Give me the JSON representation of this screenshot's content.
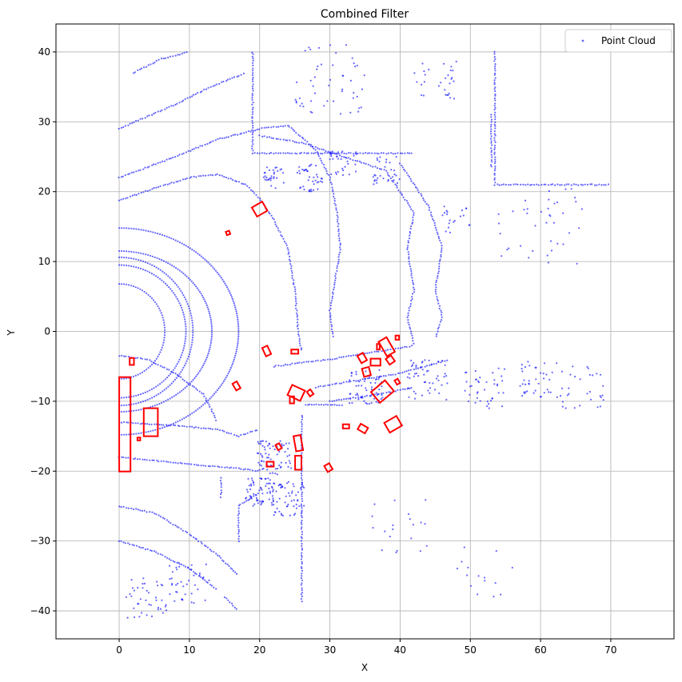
{
  "chart_data": {
    "type": "scatter",
    "title": "Combined Filter",
    "xlabel": "X",
    "ylabel": "Y",
    "xlim": [
      -9,
      79
    ],
    "ylim": [
      -44,
      44
    ],
    "xticks": [
      0,
      10,
      20,
      30,
      40,
      50,
      60,
      70
    ],
    "yticks": [
      -40,
      -30,
      -20,
      -10,
      0,
      10,
      20,
      30,
      40
    ],
    "grid": true,
    "legend_position": "top-right",
    "series": [
      {
        "name": "Point Cloud",
        "color": "#0000ff",
        "marker": "dot",
        "rings": [
          {
            "cx": 0,
            "cy": 0,
            "rx": 6.5,
            "ry": 6.8
          },
          {
            "cx": 0,
            "cy": 0,
            "rx": 9.5,
            "ry": 9.5
          },
          {
            "cx": 0,
            "cy": 0,
            "rx": 10.5,
            "ry": 10.6
          },
          {
            "cx": 0,
            "cy": 0,
            "rx": 13.2,
            "ry": 11.5
          },
          {
            "cx": 0,
            "cy": 0,
            "rx": 17,
            "ry": 14.8
          }
        ],
        "polylines": [
          [
            [
              0,
              -3.5
            ],
            [
              4,
              -4
            ],
            [
              8,
              -6
            ],
            [
              12,
              -9
            ],
            [
              14,
              -13
            ]
          ],
          [
            [
              0,
              18.7
            ],
            [
              5,
              20.5
            ],
            [
              10,
              22
            ],
            [
              14,
              22.5
            ],
            [
              18,
              21
            ],
            [
              20,
              19
            ],
            [
              22,
              16
            ],
            [
              24,
              12
            ],
            [
              25,
              6
            ],
            [
              25.5,
              0
            ],
            [
              26,
              -3
            ]
          ],
          [
            [
              0,
              22
            ],
            [
              8,
              25
            ],
            [
              14,
              27.5
            ],
            [
              20,
              29
            ],
            [
              24,
              29.5
            ],
            [
              28,
              26
            ],
            [
              30,
              22
            ],
            [
              31,
              17
            ],
            [
              31.5,
              12
            ],
            [
              30.5,
              6
            ],
            [
              30,
              3
            ],
            [
              30.5,
              -1
            ]
          ],
          [
            [
              0,
              29
            ],
            [
              8,
              32.5
            ],
            [
              13,
              35
            ],
            [
              18,
              37
            ]
          ],
          [
            [
              2,
              37
            ],
            [
              6,
              39
            ],
            [
              10,
              40
            ]
          ],
          [
            [
              19,
              40
            ],
            [
              19,
              25.5
            ],
            [
              42,
              25.5
            ]
          ],
          [
            [
              20,
              28
            ],
            [
              26,
              27
            ],
            [
              32,
              25
            ],
            [
              38,
              23
            ],
            [
              42,
              17
            ],
            [
              41,
              12
            ],
            [
              42,
              6
            ],
            [
              41,
              2
            ],
            [
              42,
              -2
            ]
          ],
          [
            [
              40,
              24
            ],
            [
              44,
              18
            ],
            [
              46,
              12
            ],
            [
              45,
              6
            ],
            [
              46,
              2
            ],
            [
              45,
              -1
            ]
          ],
          [
            [
              53.5,
              40
            ],
            [
              53.5,
              21
            ],
            [
              70,
              21
            ]
          ],
          [
            [
              53,
              31
            ],
            [
              53,
              23.2
            ]
          ],
          [
            [
              0,
              -13
            ],
            [
              8,
              -13.5
            ],
            [
              14,
              -14
            ],
            [
              17,
              -15
            ],
            [
              20,
              -14
            ]
          ],
          [
            [
              0,
              -18
            ],
            [
              10,
              -19
            ],
            [
              16,
              -19.5
            ],
            [
              20,
              -20
            ]
          ],
          [
            [
              26,
              -12
            ],
            [
              26,
              -39
            ]
          ],
          [
            [
              26.5,
              -10.5
            ],
            [
              32,
              -10.5
            ]
          ],
          [
            [
              14.5,
              -21
            ],
            [
              14.5,
              -24
            ]
          ],
          [
            [
              0,
              -25
            ],
            [
              5,
              -26
            ],
            [
              10,
              -29
            ],
            [
              14,
              -32
            ],
            [
              17,
              -35
            ]
          ],
          [
            [
              0,
              -30
            ],
            [
              5,
              -31.5
            ],
            [
              10,
              -34
            ],
            [
              14,
              -37
            ]
          ],
          [
            [
              17,
              -30
            ],
            [
              17,
              -25
            ],
            [
              20,
              -23
            ]
          ],
          [
            [
              15,
              -38
            ],
            [
              17,
              -40
            ]
          ],
          [
            [
              28,
              -8
            ],
            [
              34,
              -7
            ],
            [
              40,
              -6
            ],
            [
              47,
              -4
            ]
          ],
          [
            [
              30,
              -10
            ],
            [
              37,
              -9
            ],
            [
              42,
              -8
            ]
          ],
          [
            [
              22,
              -5
            ],
            [
              30,
              -4
            ],
            [
              36,
              -3
            ],
            [
              42,
              -2
            ]
          ]
        ],
        "clusters": [
          {
            "x": 22,
            "y": 22,
            "spread": 1.5,
            "n": 30
          },
          {
            "x": 27,
            "y": 22,
            "spread": 2.0,
            "n": 40
          },
          {
            "x": 32,
            "y": 24,
            "spread": 2.0,
            "n": 30
          },
          {
            "x": 38,
            "y": 23,
            "spread": 2.0,
            "n": 30
          },
          {
            "x": 22,
            "y": -18,
            "spread": 2.5,
            "n": 70
          },
          {
            "x": 24,
            "y": -24,
            "spread": 2.5,
            "n": 60
          },
          {
            "x": 20,
            "y": -23,
            "spread": 2.0,
            "n": 60
          },
          {
            "x": 35,
            "y": -8,
            "spread": 2.5,
            "n": 60
          },
          {
            "x": 44,
            "y": -7,
            "spread": 3.0,
            "n": 50
          },
          {
            "x": 52,
            "y": -8,
            "spread": 3.0,
            "n": 40
          },
          {
            "x": 60,
            "y": -7,
            "spread": 3.0,
            "n": 40
          },
          {
            "x": 66,
            "y": -8,
            "spread": 3.0,
            "n": 30
          },
          {
            "x": 60,
            "y": 15,
            "spread": 6.0,
            "n": 40
          },
          {
            "x": 48,
            "y": 16,
            "spread": 2.0,
            "n": 20
          },
          {
            "x": 30,
            "y": 36,
            "spread": 5.0,
            "n": 50
          },
          {
            "x": 45,
            "y": 36,
            "spread": 3.0,
            "n": 30
          },
          {
            "x": 40,
            "y": -28,
            "spread": 4.0,
            "n": 20
          },
          {
            "x": 52,
            "y": -34,
            "spread": 4.0,
            "n": 15
          },
          {
            "x": 4,
            "y": -38,
            "spread": 3.0,
            "n": 40
          },
          {
            "x": 10,
            "y": -36,
            "spread": 3.0,
            "n": 40
          }
        ]
      }
    ],
    "boxes": [
      {
        "cx": 0.8,
        "cy": -13.3,
        "w": 1.6,
        "h": 13.5,
        "angle": 0
      },
      {
        "cx": 4.5,
        "cy": -13,
        "w": 2.0,
        "h": 4.0,
        "angle": 0
      },
      {
        "cx": 1.8,
        "cy": -4.3,
        "w": 0.6,
        "h": 1.0,
        "angle": 0
      },
      {
        "cx": 2.8,
        "cy": -15.4,
        "w": 0.4,
        "h": 0.4,
        "angle": 0
      },
      {
        "cx": 20,
        "cy": 17.5,
        "w": 1.7,
        "h": 1.5,
        "angle": 30
      },
      {
        "cx": 15.5,
        "cy": 14.1,
        "w": 0.5,
        "h": 0.5,
        "angle": 20
      },
      {
        "cx": 21,
        "cy": -2.8,
        "w": 0.8,
        "h": 1.3,
        "angle": 25
      },
      {
        "cx": 25,
        "cy": -2.9,
        "w": 1.0,
        "h": 0.6,
        "angle": 0
      },
      {
        "cx": 16.7,
        "cy": -7.8,
        "w": 0.7,
        "h": 1.1,
        "angle": 30
      },
      {
        "cx": 25.2,
        "cy": -8.8,
        "w": 1.6,
        "h": 2.0,
        "angle": 65
      },
      {
        "cx": 24.6,
        "cy": -9.8,
        "w": 0.6,
        "h": 1.0,
        "angle": 0
      },
      {
        "cx": 27.2,
        "cy": -8.8,
        "w": 0.6,
        "h": 0.8,
        "angle": 35
      },
      {
        "cx": 25.5,
        "cy": -16,
        "w": 1.0,
        "h": 2.2,
        "angle": 10
      },
      {
        "cx": 25.5,
        "cy": -18.8,
        "w": 0.9,
        "h": 2.0,
        "angle": 0
      },
      {
        "cx": 22.7,
        "cy": -16.5,
        "w": 0.6,
        "h": 0.8,
        "angle": 30
      },
      {
        "cx": 21.5,
        "cy": -19,
        "w": 1.0,
        "h": 0.7,
        "angle": 0
      },
      {
        "cx": 29.8,
        "cy": -19.5,
        "w": 0.8,
        "h": 1.0,
        "angle": 30
      },
      {
        "cx": 32.3,
        "cy": -13.6,
        "w": 0.9,
        "h": 0.6,
        "angle": 0
      },
      {
        "cx": 34.7,
        "cy": -13.9,
        "w": 0.9,
        "h": 1.2,
        "angle": 60
      },
      {
        "cx": 34.6,
        "cy": -3.8,
        "w": 0.9,
        "h": 1.2,
        "angle": 30
      },
      {
        "cx": 35.2,
        "cy": -5.8,
        "w": 1.0,
        "h": 1.2,
        "angle": 15
      },
      {
        "cx": 36.5,
        "cy": -4.4,
        "w": 1.4,
        "h": 1.0,
        "angle": 0
      },
      {
        "cx": 36.9,
        "cy": -2.2,
        "w": 0.4,
        "h": 0.8,
        "angle": 0
      },
      {
        "cx": 38.1,
        "cy": -2.2,
        "w": 1.3,
        "h": 2.4,
        "angle": 30
      },
      {
        "cx": 38.6,
        "cy": -4.1,
        "w": 0.9,
        "h": 1.0,
        "angle": 35
      },
      {
        "cx": 39.6,
        "cy": -0.9,
        "w": 0.5,
        "h": 0.6,
        "angle": 0
      },
      {
        "cx": 37.5,
        "cy": -8.6,
        "w": 2.6,
        "h": 2.0,
        "angle": 40
      },
      {
        "cx": 39.6,
        "cy": -7.2,
        "w": 0.5,
        "h": 0.7,
        "angle": 30
      },
      {
        "cx": 39,
        "cy": -13.3,
        "w": 2.0,
        "h": 1.6,
        "angle": 30
      }
    ]
  }
}
